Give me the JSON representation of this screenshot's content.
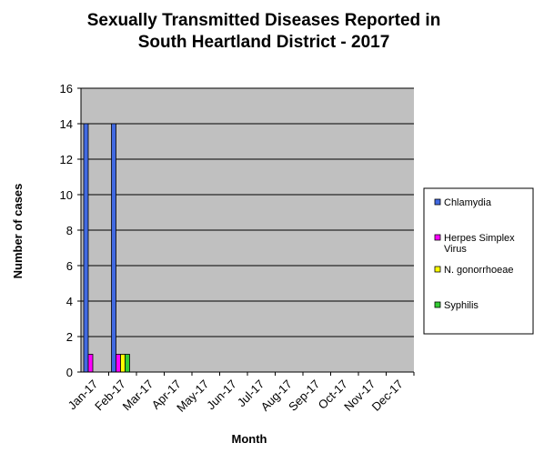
{
  "chart_data": {
    "type": "bar",
    "title_lines": [
      "Sexually Transmitted Diseases Reported in",
      "South Heartland District -  2017"
    ],
    "xlabel": "Month",
    "ylabel": "Number of cases",
    "categories": [
      "Jan-17",
      "Feb-17",
      "Mar-17",
      "Apr-17",
      "May-17",
      "Jun-17",
      "Jul-17",
      "Aug-17",
      "Sep-17",
      "Oct-17",
      "Nov-17",
      "Dec-17"
    ],
    "ylim": [
      0,
      16
    ],
    "yticks": [
      0,
      2,
      4,
      6,
      8,
      10,
      12,
      14,
      16
    ],
    "grid": "horizontal",
    "legend_position": "right",
    "plot_background": "#c0c0c0",
    "series": [
      {
        "name": "Chlamydia",
        "legend_lines": [
          "Chlamydia"
        ],
        "color": "#4169e1",
        "values": [
          14,
          14,
          0,
          0,
          0,
          0,
          0,
          0,
          0,
          0,
          0,
          0
        ]
      },
      {
        "name": "Herpes Simplex Virus",
        "legend_lines": [
          "Herpes Simplex",
          "Virus"
        ],
        "color": "#ff00ff",
        "values": [
          1,
          1,
          0,
          0,
          0,
          0,
          0,
          0,
          0,
          0,
          0,
          0
        ]
      },
      {
        "name": "N. gonorrhoeae",
        "legend_lines": [
          "N. gonorrhoeae"
        ],
        "color": "#ffff00",
        "values": [
          0,
          1,
          0,
          0,
          0,
          0,
          0,
          0,
          0,
          0,
          0,
          0
        ]
      },
      {
        "name": "Syphilis",
        "legend_lines": [
          "Syphilis"
        ],
        "color": "#33cc33",
        "values": [
          0,
          1,
          0,
          0,
          0,
          0,
          0,
          0,
          0,
          0,
          0,
          0
        ]
      }
    ]
  }
}
